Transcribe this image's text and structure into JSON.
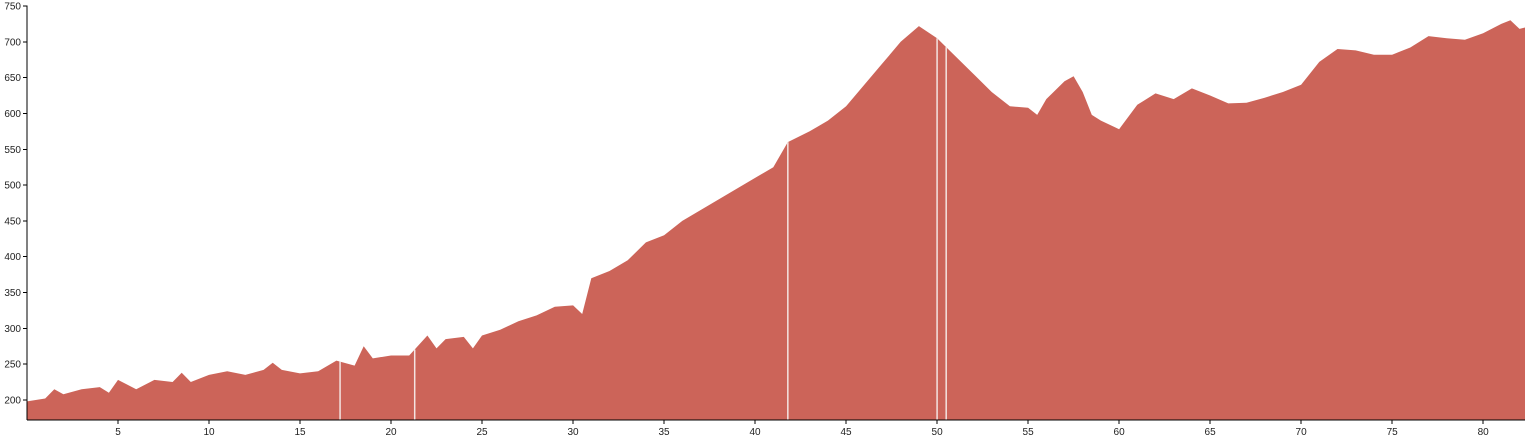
{
  "chart_data": {
    "type": "area",
    "title": "",
    "xlabel": "",
    "ylabel": "",
    "xlim": [
      0,
      82.3
    ],
    "ylim": [
      172,
      750
    ],
    "grid": false,
    "fill_color": "#cc6459",
    "x_ticks": [
      5,
      10,
      15,
      20,
      25,
      30,
      35,
      40,
      45,
      50,
      55,
      60,
      65,
      70,
      75,
      80
    ],
    "y_ticks": [
      200,
      250,
      300,
      350,
      400,
      450,
      500,
      550,
      600,
      650,
      700,
      750
    ],
    "gap_markers_x": [
      17.2,
      21.3,
      41.8,
      50.0,
      50.5
    ],
    "x": [
      0,
      1,
      1.5,
      2,
      3,
      4,
      4.5,
      5,
      6,
      7,
      8,
      8.5,
      9,
      10,
      11,
      12,
      13,
      13.5,
      14,
      15,
      16,
      17,
      18,
      18.5,
      19,
      20,
      21,
      22,
      22.5,
      23,
      24,
      24.5,
      25,
      26,
      27,
      28,
      29,
      30,
      30.5,
      31,
      32,
      33,
      34,
      35,
      36,
      37,
      38,
      39,
      40,
      41,
      41.8,
      43,
      44,
      45,
      46,
      47,
      48,
      49,
      50,
      51,
      52,
      53,
      54,
      55,
      55.5,
      56,
      57,
      57.5,
      58,
      58.5,
      59,
      60,
      61,
      62,
      63,
      64,
      65,
      66,
      67,
      68,
      69,
      70,
      71,
      72,
      73,
      74,
      75,
      76,
      77,
      78,
      79,
      80,
      81,
      81.5,
      82,
      82.3
    ],
    "y": [
      198,
      202,
      215,
      208,
      215,
      218,
      210,
      228,
      215,
      228,
      225,
      238,
      225,
      235,
      240,
      235,
      242,
      252,
      242,
      237,
      240,
      255,
      248,
      275,
      258,
      262,
      262,
      290,
      272,
      285,
      288,
      272,
      290,
      298,
      310,
      318,
      330,
      332,
      320,
      370,
      380,
      395,
      420,
      430,
      450,
      465,
      480,
      495,
      510,
      525,
      560,
      575,
      590,
      610,
      640,
      670,
      700,
      722,
      705,
      680,
      655,
      630,
      610,
      608,
      598,
      620,
      645,
      652,
      630,
      598,
      590,
      578,
      612,
      628,
      620,
      635,
      625,
      614,
      615,
      622,
      630,
      640,
      672,
      690,
      688,
      682,
      682,
      692,
      708,
      705,
      703,
      712,
      725,
      730,
      718,
      720
    ]
  }
}
